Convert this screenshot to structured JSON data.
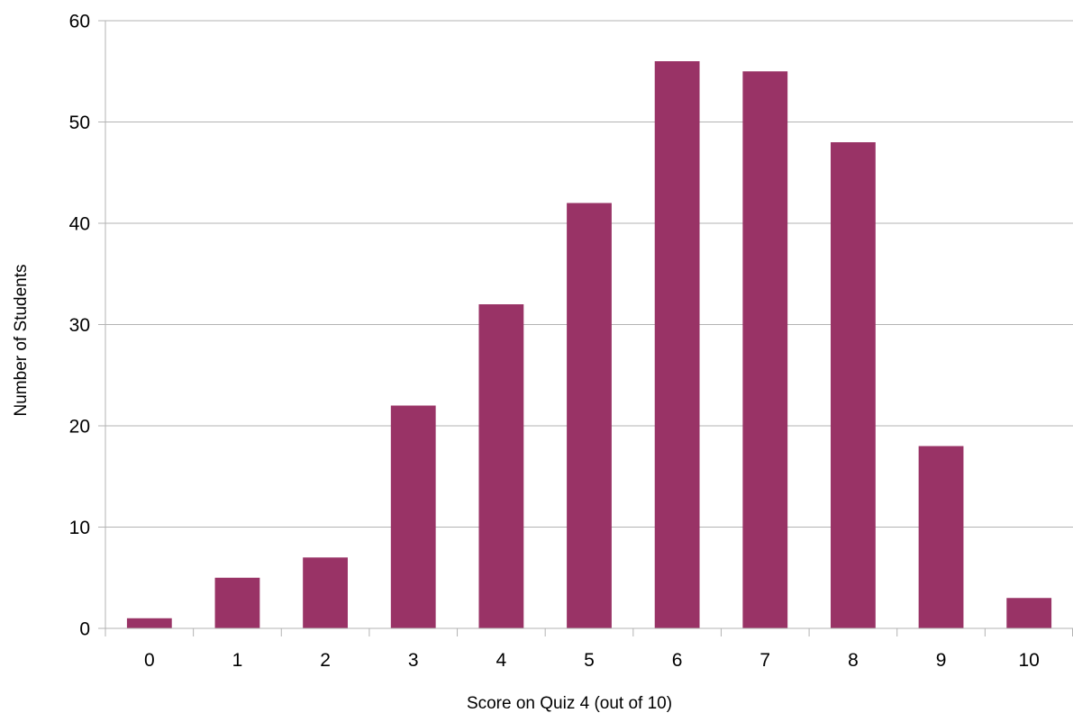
{
  "chart_data": {
    "type": "bar",
    "title": "",
    "xlabel": "Score on Quiz 4 (out of 10)",
    "ylabel": "Number of Students",
    "categories": [
      "0",
      "1",
      "2",
      "3",
      "4",
      "5",
      "6",
      "7",
      "8",
      "9",
      "10"
    ],
    "values": [
      1,
      5,
      7,
      22,
      32,
      42,
      56,
      55,
      48,
      18,
      3
    ],
    "ylim": [
      0,
      60
    ],
    "yticks": [
      "0",
      "10",
      "20",
      "30",
      "40",
      "50",
      "60"
    ],
    "grid": true,
    "legend": "none",
    "bar_color": "#993366",
    "grid_color": "#b3b3b3"
  }
}
